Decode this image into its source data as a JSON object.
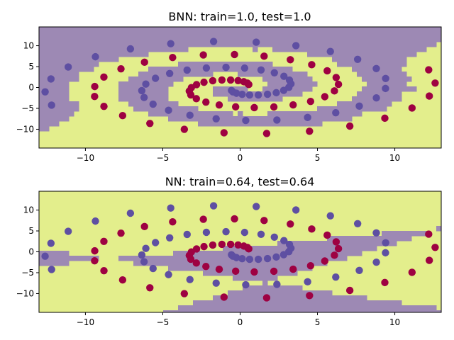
{
  "chart_data": [
    {
      "type": "scatter",
      "title": "BNN: train=1.0, test=1.0",
      "xlim": [
        -13,
        13
      ],
      "ylim": [
        -14.5,
        14.5
      ],
      "xticks": [
        -10,
        -5,
        0,
        5,
        10
      ],
      "yticks": [
        -10,
        -5,
        0,
        5,
        10
      ],
      "grid": false,
      "background": "decision-boundary regions (yellow / purple)",
      "series": [
        {
          "class": 0,
          "color": "#9e0142",
          "points_description": "dark red two-spiral arm"
        },
        {
          "class": 1,
          "color": "#5e4fa2",
          "points_description": "purple two-spiral arm"
        }
      ]
    },
    {
      "type": "scatter",
      "title": "NN: train=0.64, test=0.64",
      "xlim": [
        -13,
        13
      ],
      "ylim": [
        -14.5,
        14.5
      ],
      "xticks": [
        -10,
        -5,
        0,
        5,
        10
      ],
      "yticks": [
        -10,
        -5,
        0,
        5,
        10
      ],
      "grid": false,
      "background": "decision-boundary regions (yellow / purple) made of straight wedges",
      "series": [
        {
          "class": 0,
          "color": "#9e0142",
          "points_description": "dark red two-spiral arm"
        },
        {
          "class": 1,
          "color": "#5e4fa2",
          "points_description": "purple two-spiral arm"
        }
      ]
    }
  ],
  "colors": {
    "class0_point": "#9e0142",
    "class1_point": "#5e4fa2",
    "region_yellow": "#e3ee8c",
    "region_purple": "#9d89b4",
    "boundary": "#63b59f"
  }
}
